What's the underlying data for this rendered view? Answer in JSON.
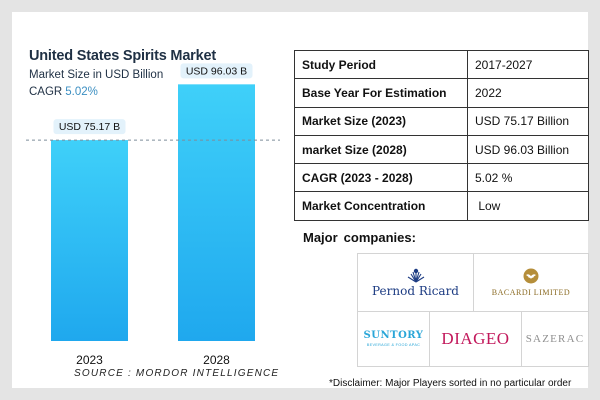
{
  "header": {
    "title": "United States Spirits Market",
    "subtitle": "Market Size in USD Billion",
    "cagr_label": "CAGR",
    "cagr_value": "5.02%"
  },
  "chart_data": {
    "type": "bar",
    "title": "United States Spirits Market",
    "ylabel": "Market Size in USD Billion",
    "categories": [
      "2023",
      "2028"
    ],
    "values": [
      75.17,
      96.03
    ],
    "data_labels": [
      "USD 75.17 B",
      "USD 96.03 B"
    ],
    "ylim": [
      0,
      110
    ],
    "grid": false,
    "reference_line_at": 75.17
  },
  "source": "SOURCE : MORDOR INTELLIGENCE",
  "facts_table": [
    {
      "key": "Study Period",
      "value": "2017-2027"
    },
    {
      "key": "Base Year For Estimation",
      "value": "2022"
    },
    {
      "key": "Market Size (2023)",
      "value": "USD 75.17 Billion"
    },
    {
      "key": "market Size (2028)",
      "value": "USD 96.03 Billion"
    },
    {
      "key": "CAGR (2023 - 2028)",
      "value": "5.02 %"
    },
    {
      "key": "Market Concentration",
      "value": " Low"
    }
  ],
  "major_companies": {
    "label_first": "Major",
    "label_second": "companies:",
    "logos": {
      "pernod_ricard": "Pernod Ricard",
      "bacardi": "BACARDI LIMITED",
      "suntory": "SUNTORY",
      "suntory_tagline": "BEVERAGE & FOOD APAC",
      "diageo": "DIAGEO",
      "sazerac": "SAZERAC"
    }
  },
  "disclaimer": "*Disclaimer: Major Players sorted in no particular order",
  "colors": {
    "bar_top": "#3fd0f9",
    "bar_bottom": "#1fa8ee",
    "label_bg": "#e3f2fb",
    "title": "#1f3044",
    "accent": "#3c8fc2",
    "diageo": "#c2185b",
    "pernod": "#1d3c83",
    "suntory": "#29a6d8",
    "bacardi": "#8a6a22"
  }
}
